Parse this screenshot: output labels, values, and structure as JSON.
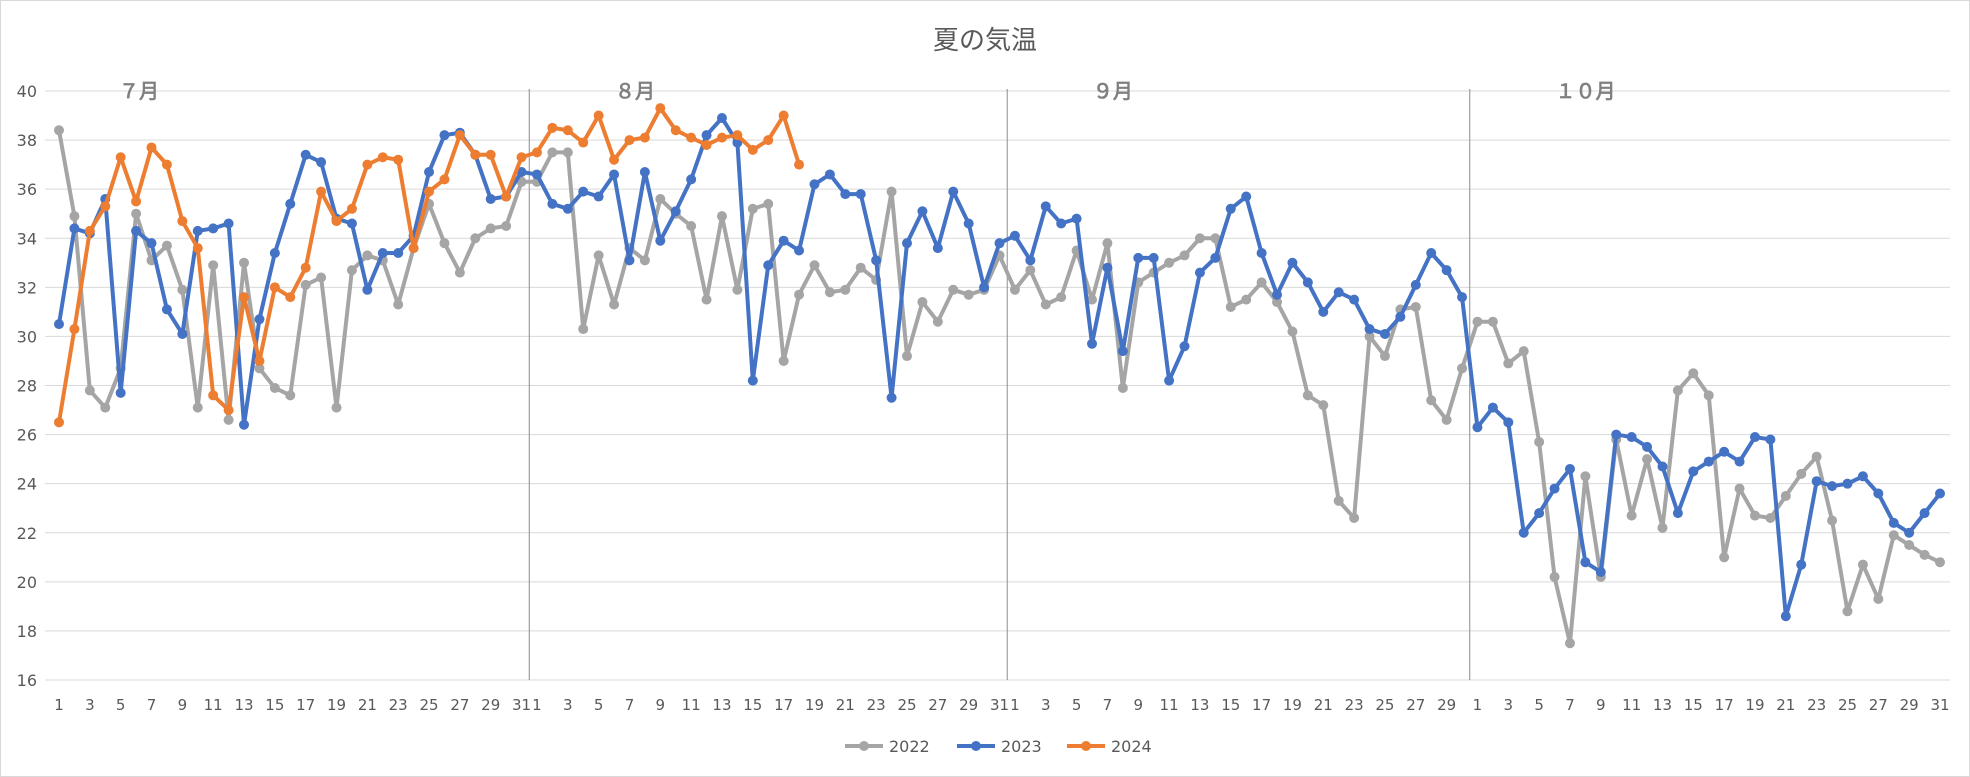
{
  "chart_data": {
    "type": "line",
    "title": "夏の気温",
    "ylim": [
      16,
      40
    ],
    "yticks": [
      16,
      18,
      20,
      22,
      24,
      26,
      28,
      30,
      32,
      34,
      36,
      38,
      40
    ],
    "grid": true,
    "legend_position": "bottom",
    "months": [
      {
        "label": "７月",
        "days": 31
      },
      {
        "label": "８月",
        "days": 31
      },
      {
        "label": "９月",
        "days": 30
      },
      {
        "label": "１０月",
        "days": 31
      }
    ],
    "series": [
      {
        "name": "2022",
        "color": "#a5a5a5",
        "values": [
          38.4,
          34.9,
          27.8,
          27.1,
          28.7,
          35.0,
          33.1,
          33.7,
          31.9,
          27.1,
          32.9,
          26.6,
          33.0,
          28.7,
          27.9,
          27.6,
          32.1,
          32.4,
          27.1,
          32.7,
          33.3,
          33.1,
          31.3,
          33.6,
          35.4,
          33.8,
          32.6,
          34.0,
          34.4,
          34.5,
          36.3,
          36.3,
          37.5,
          37.5,
          30.3,
          33.3,
          31.3,
          33.6,
          33.1,
          35.6,
          35.0,
          34.5,
          31.5,
          34.9,
          31.9,
          35.2,
          35.4,
          29.0,
          31.7,
          32.9,
          31.8,
          31.9,
          32.8,
          32.3,
          35.9,
          29.2,
          31.4,
          30.6,
          31.9,
          31.7,
          31.9,
          33.3,
          31.9,
          32.7,
          31.3,
          31.6,
          33.5,
          31.5,
          33.8,
          27.9,
          32.2,
          32.6,
          33.0,
          33.3,
          34.0,
          34.0,
          31.2,
          31.5,
          32.2,
          31.4,
          30.2,
          27.6,
          27.2,
          23.3,
          22.6,
          30.0,
          29.2,
          31.1,
          31.2,
          27.4,
          26.6,
          28.7,
          30.6,
          30.6,
          28.9,
          29.4,
          25.7,
          20.2,
          17.5,
          24.3,
          20.2,
          25.8,
          22.7,
          25.0,
          22.2,
          27.8,
          28.5,
          27.6,
          21.0,
          23.8,
          22.7,
          22.6,
          23.5,
          24.4,
          25.1,
          22.5,
          18.8,
          20.7,
          19.3,
          21.9,
          21.5,
          21.1,
          20.8
        ]
      },
      {
        "name": "2023",
        "color": "#4472c4",
        "values": [
          30.5,
          34.4,
          34.2,
          35.6,
          27.7,
          34.3,
          33.8,
          31.1,
          30.1,
          34.3,
          34.4,
          34.6,
          26.4,
          30.7,
          33.4,
          35.4,
          37.4,
          37.1,
          34.8,
          34.6,
          31.9,
          33.4,
          33.4,
          34.1,
          36.7,
          38.2,
          38.3,
          37.4,
          35.6,
          35.7,
          36.7,
          36.6,
          35.4,
          35.2,
          35.9,
          35.7,
          36.6,
          33.1,
          36.7,
          33.9,
          35.1,
          36.4,
          38.2,
          38.9,
          37.9,
          28.2,
          32.9,
          33.9,
          33.5,
          36.2,
          36.6,
          35.8,
          35.8,
          33.1,
          27.5,
          33.8,
          35.1,
          33.6,
          35.9,
          34.6,
          32.0,
          33.8,
          34.1,
          33.1,
          35.3,
          34.6,
          34.8,
          29.7,
          32.8,
          29.4,
          33.2,
          33.2,
          28.2,
          29.6,
          32.6,
          33.2,
          35.2,
          35.7,
          33.4,
          31.7,
          33.0,
          32.2,
          31.0,
          31.8,
          31.5,
          30.3,
          30.1,
          30.8,
          32.1,
          33.4,
          32.7,
          31.6,
          26.3,
          27.1,
          26.5,
          22.0,
          22.8,
          23.8,
          24.6,
          20.8,
          20.4,
          26.0,
          25.9,
          25.5,
          24.7,
          22.8,
          24.5,
          24.9,
          25.3,
          24.9,
          25.9,
          25.8,
          18.6,
          20.7,
          24.1,
          23.9,
          24.0,
          24.3,
          23.6,
          22.4,
          22.0,
          22.8,
          23.6
        ]
      },
      {
        "name": "2024",
        "color": "#ed7d31",
        "values": [
          26.5,
          30.3,
          34.3,
          35.3,
          37.3,
          35.5,
          37.7,
          37.0,
          34.7,
          33.6,
          27.6,
          27.0,
          31.6,
          29.0,
          32.0,
          31.6,
          32.8,
          35.9,
          34.7,
          35.2,
          37.0,
          37.3,
          37.2,
          33.6,
          35.9,
          36.4,
          38.2,
          37.4,
          37.4,
          35.7,
          37.3,
          37.5,
          38.5,
          38.4,
          37.9,
          39.0,
          37.2,
          38.0,
          38.1,
          39.3,
          38.4,
          38.1,
          37.8,
          38.1,
          38.2,
          37.6,
          38.0,
          39.0,
          37.0
        ]
      }
    ]
  }
}
